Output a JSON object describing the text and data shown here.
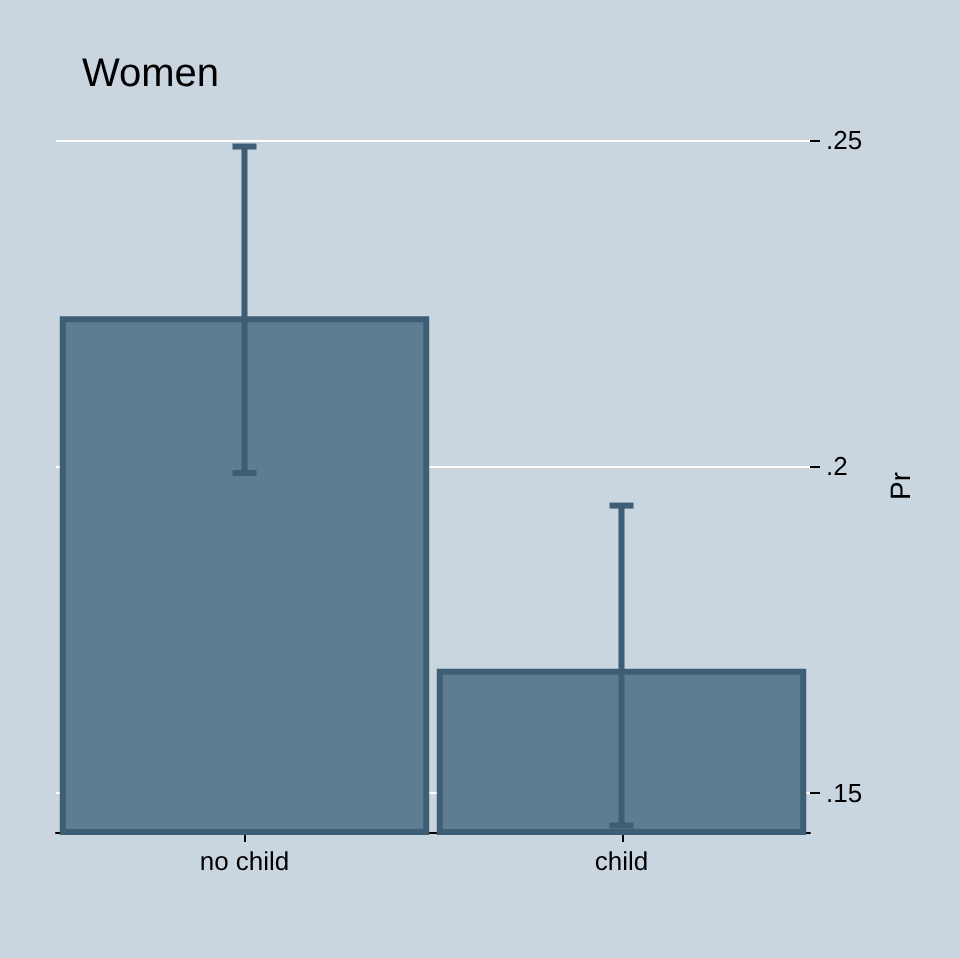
{
  "chart_data": {
    "type": "bar",
    "title": "Women",
    "ylabel": "Pr",
    "categories": [
      "no child",
      "child"
    ],
    "values": [
      0.223,
      0.169
    ],
    "errors": [
      [
        0.199,
        0.249
      ],
      [
        0.145,
        0.194
      ]
    ],
    "color": "#5f7d91",
    "ylim": [
      0.144,
      0.25
    ],
    "yticks": [
      {
        "value": 0.15,
        "label": ".15"
      },
      {
        "value": 0.2,
        "label": ".2"
      },
      {
        "value": 0.25,
        "label": ".25"
      }
    ],
    "grid": "y"
  }
}
